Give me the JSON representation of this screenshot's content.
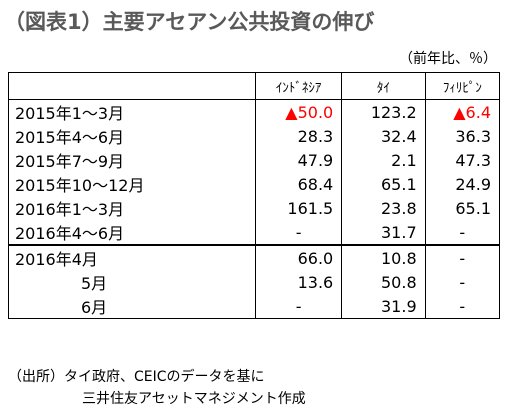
{
  "header": {
    "title": "（図表1）主要アセアン公共投資の伸び",
    "unit": "（前年比、％）"
  },
  "table": {
    "columns": [
      "ｲﾝﾄﾞﾈｼｱ",
      "ﾀｲ",
      "ﾌｨﾘﾋﾟﾝ"
    ],
    "rows": [
      [
        "2015年1～3月",
        "▲50.0",
        "123.2",
        "▲6.4"
      ],
      [
        "2015年4～6月",
        "28.3",
        "32.4",
        "36.3"
      ],
      [
        "2015年7～9月",
        "47.9",
        "2.1",
        "47.3"
      ],
      [
        "2015年10～12月",
        "68.4",
        "65.1",
        "24.9"
      ],
      [
        "2016年1～3月",
        "161.5",
        "23.8",
        "65.1"
      ],
      [
        "2016年4～6月",
        "-",
        "31.7",
        "-"
      ],
      [
        "2016年4月",
        "66.0",
        "10.8",
        "-"
      ],
      [
        "5月",
        "13.6",
        "50.8",
        "-"
      ],
      [
        "6月",
        "-",
        "31.9",
        "-"
      ]
    ]
  },
  "source": {
    "line1": "（出所）タイ政府、CEICのデータを基に",
    "line2": "三井住友アセットマネジメント作成"
  }
}
